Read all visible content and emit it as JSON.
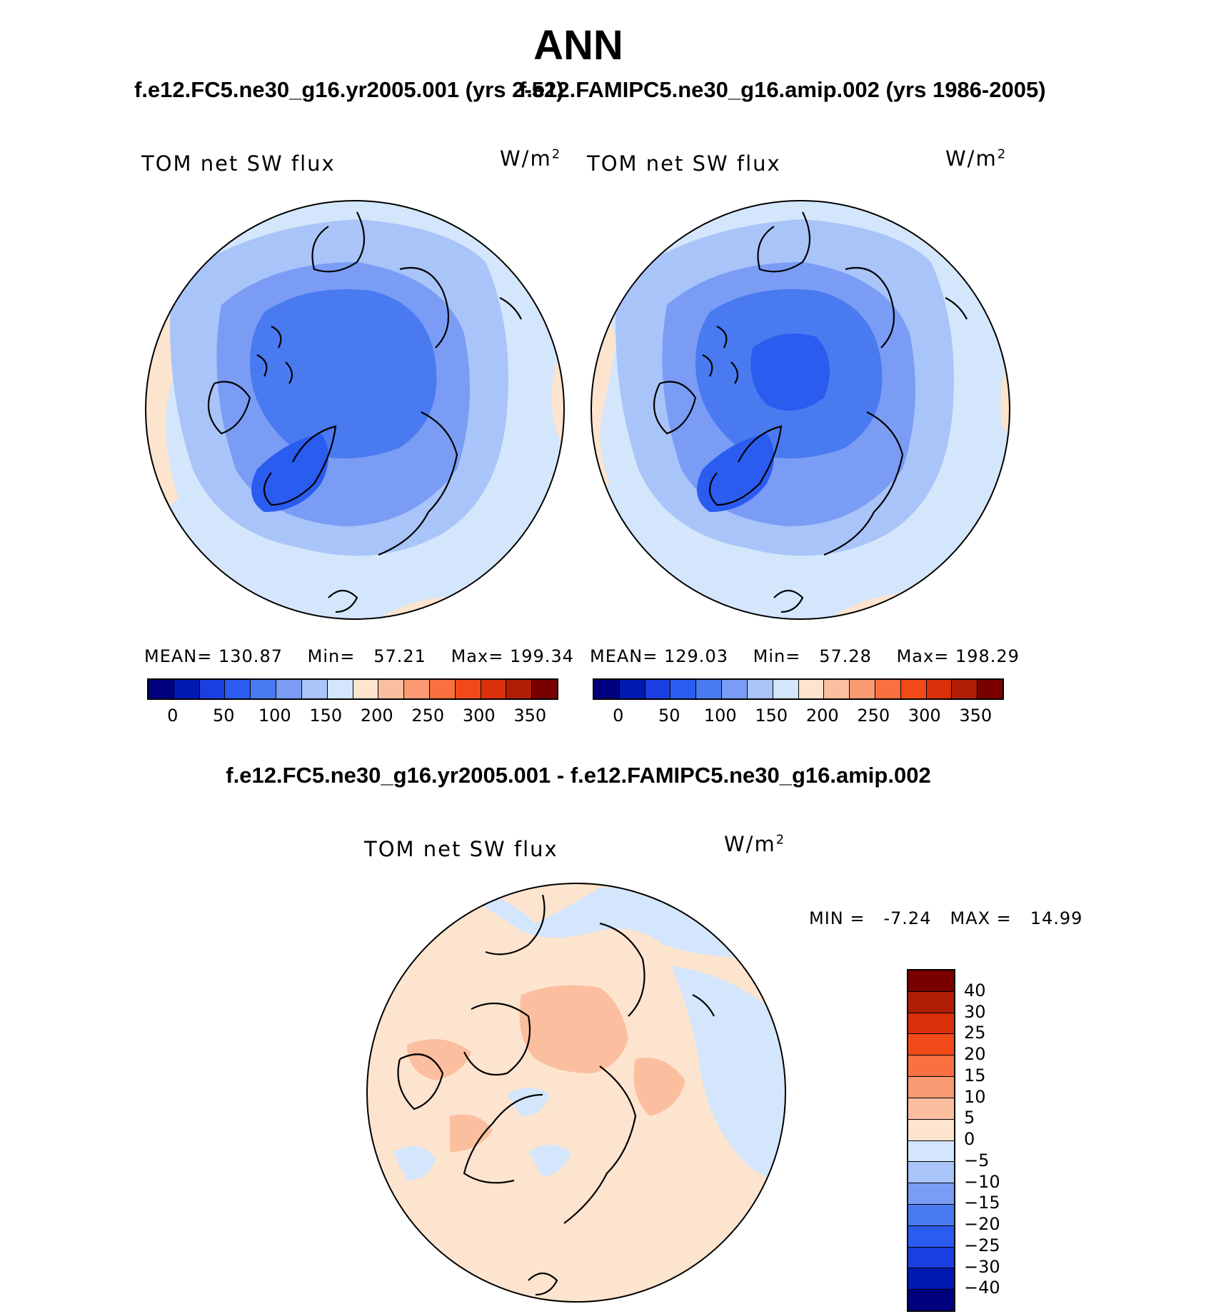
{
  "season": "ANN",
  "panels": [
    {
      "run_title": "f.e12.FC5.ne30_g16.yr2005.001 (yrs 2-52)",
      "variable": "TOM net SW flux",
      "units_base": "W/m",
      "units_exp": "2",
      "mean_label": "MEAN=",
      "mean": "130.87",
      "min_label": "Min=",
      "min": "57.21",
      "max_label": "Max=",
      "max": "199.34"
    },
    {
      "run_title": "f.e12.FAMIPC5.ne30_g16.amip.002 (yrs 1986-2005)",
      "variable": "TOM net SW flux",
      "units_base": "W/m",
      "units_exp": "2",
      "mean_label": "MEAN=",
      "mean": "129.03",
      "min_label": "Min=",
      "min": "57.28",
      "max_label": "Max=",
      "max": "198.29"
    }
  ],
  "colorbar_main": {
    "ticks": [
      "0",
      "50",
      "100",
      "150",
      "200",
      "250",
      "300",
      "350"
    ],
    "colors": [
      "#00007f",
      "#0019b0",
      "#1a3fe0",
      "#2b5cf0",
      "#4a7af0",
      "#7a9cf5",
      "#a9c4f8",
      "#d4e6fb",
      "#fde4cf",
      "#fbbfa0",
      "#f99a72",
      "#fb7040",
      "#f14a18",
      "#d9300a",
      "#b01e05",
      "#7a0000"
    ]
  },
  "difference": {
    "title": "f.e12.FC5.ne30_g16.yr2005.001 - f.e12.FAMIPC5.ne30_g16.amip.002",
    "variable": "TOM net SW flux",
    "units_base": "W/m",
    "units_exp": "2",
    "min_label": "MIN =",
    "min": "-7.24",
    "max_label": "MAX =",
    "max": "14.99",
    "colorbar": {
      "ticks": [
        "40",
        "30",
        "25",
        "20",
        "15",
        "10",
        "5",
        "0",
        "-5",
        "-10",
        "-15",
        "-20",
        "-25",
        "-30",
        "-40"
      ],
      "colors_top_to_bottom": [
        "#7a0000",
        "#b01e05",
        "#d9300a",
        "#f14a18",
        "#fb7040",
        "#f99a72",
        "#fbbfa0",
        "#fde4cf",
        "#d4e6fb",
        "#a9c4f8",
        "#7a9cf5",
        "#4a7af0",
        "#2b5cf0",
        "#1a3fe0",
        "#0019b0",
        "#00007f"
      ]
    }
  }
}
